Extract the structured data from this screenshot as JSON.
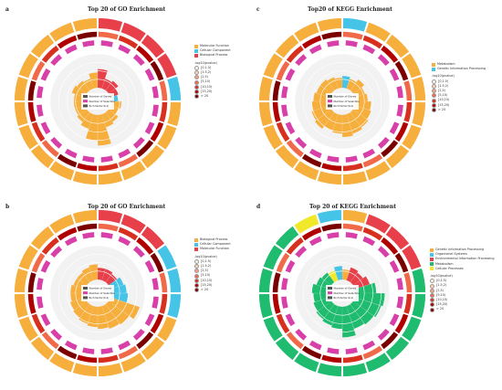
{
  "figure": {
    "panels": [
      {
        "label": "a",
        "title": "Top 20 of GO Enrichment"
      },
      {
        "label": "c",
        "title": "Top20 of KEGG Enrichment"
      },
      {
        "label": "b",
        "title": "Top 20 of GO Enrichment"
      },
      {
        "label": "d",
        "title": "Top 20 of KEGG Enrichment"
      }
    ],
    "inner_legend": [
      "Number of Genes",
      "Number of Selection",
      "Rich factor(0-1)"
    ],
    "pvalue_title": "-log10(pvalue)",
    "pvalue_bins": [
      "[0,1.5)",
      "[1.5,2)",
      "[2,5)",
      "[5,10)",
      "[10,15)",
      "[15,20)",
      "> 20"
    ],
    "pvalue_colors": [
      "#fff3e6",
      "#fcd3b0",
      "#f8a07a",
      "#f06a4a",
      "#d7301f",
      "#b00000",
      "#7a0000"
    ]
  },
  "chart_data": [
    {
      "type": "circular-bar",
      "panel": "a",
      "title": "Top 20 of GO Enrichment",
      "categories": [
        "Molecular Function",
        "Cellular Component",
        "Biological Process"
      ],
      "colors": [
        "#f6ae3c",
        "#45c4e8",
        "#e8404a"
      ],
      "sector_category": [
        2,
        2,
        2,
        2,
        1,
        0,
        0,
        0,
        0,
        0,
        0,
        0,
        0,
        0,
        0,
        0,
        0,
        0,
        0,
        0
      ],
      "rich_factor": [
        0.55,
        0.3,
        0.35,
        0.25,
        0.2,
        0.3,
        0.25,
        0.35,
        0.4,
        0.9,
        0.75,
        0.45,
        0.35,
        0.3,
        0.3,
        0.3,
        0.4,
        0.35,
        0.3,
        0.45
      ]
    },
    {
      "type": "circular-bar",
      "panel": "c",
      "title": "Top20 of KEGG Enrichment",
      "categories": [
        "Metabolism",
        "Genetic Information Processing"
      ],
      "colors": [
        "#f6ae3c",
        "#45c4e8"
      ],
      "sector_category": [
        1,
        0,
        0,
        0,
        0,
        0,
        0,
        0,
        0,
        0,
        0,
        0,
        0,
        0,
        0,
        0,
        0,
        0,
        0,
        0
      ],
      "rich_factor": [
        0.35,
        0.3,
        0.4,
        0.3,
        0.35,
        0.45,
        0.5,
        0.55,
        0.6,
        0.65,
        0.55,
        0.5,
        0.6,
        0.55,
        0.5,
        0.45,
        0.4,
        0.4,
        0.35,
        0.3
      ]
    },
    {
      "type": "circular-bar",
      "panel": "b",
      "title": "Top 20 of GO Enrichment",
      "categories": [
        "Biological Process",
        "Cellular Component",
        "Molecular Function"
      ],
      "colors": [
        "#f6ae3c",
        "#45c4e8",
        "#e8404a"
      ],
      "sector_category": [
        2,
        2,
        2,
        1,
        1,
        1,
        0,
        0,
        0,
        0,
        0,
        0,
        0,
        0,
        0,
        0,
        0,
        0,
        0,
        0
      ],
      "rich_factor": [
        0.35,
        0.35,
        0.3,
        0.4,
        0.45,
        0.5,
        0.9,
        0.75,
        0.7,
        0.65,
        0.6,
        0.55,
        0.5,
        0.45,
        0.4,
        0.4,
        0.35,
        0.35,
        0.4,
        0.45
      ]
    },
    {
      "type": "circular-bar",
      "panel": "d",
      "title": "Top 20 of KEGG Enrichment",
      "categories": [
        "Genetic Information Processing",
        "Organismal Systems",
        "Environmental Information Processing",
        "Metabolism",
        "Cellular Processes"
      ],
      "colors": [
        "#f6ae3c",
        "#45c4e8",
        "#e8404a",
        "#1fbb6e",
        "#f2e82a"
      ],
      "sector_category": [
        0,
        2,
        2,
        2,
        3,
        3,
        3,
        3,
        3,
        3,
        3,
        3,
        3,
        3,
        3,
        3,
        3,
        3,
        4,
        1
      ],
      "rich_factor": [
        0.3,
        0.4,
        0.35,
        0.45,
        0.6,
        0.85,
        0.8,
        0.75,
        0.7,
        0.9,
        0.65,
        0.6,
        0.55,
        0.5,
        0.45,
        0.5,
        0.4,
        0.35,
        0.3,
        0.4
      ]
    }
  ]
}
